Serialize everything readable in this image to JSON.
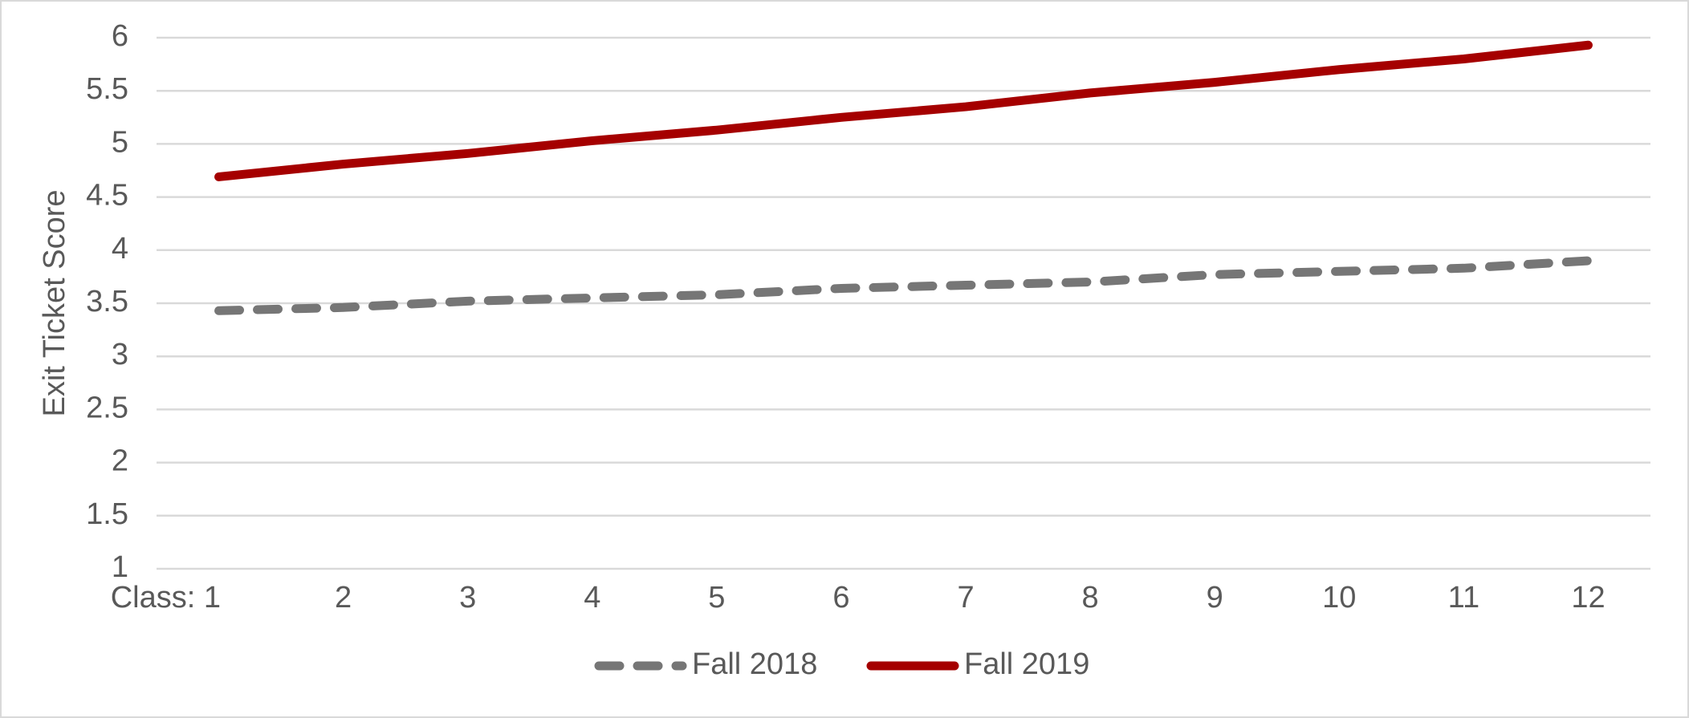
{
  "chart_data": {
    "type": "line",
    "y_label": "Exit Ticket Score",
    "categories": [
      "Class: 1",
      "2",
      "3",
      "4",
      "5",
      "6",
      "7",
      "8",
      "9",
      "10",
      "11",
      "12"
    ],
    "series": [
      {
        "name": "Fall 2018",
        "color": "#767676",
        "dash": true,
        "values": [
          3.43,
          3.46,
          3.52,
          3.55,
          3.58,
          3.64,
          3.67,
          3.7,
          3.77,
          3.8,
          3.83,
          3.9
        ]
      },
      {
        "name": "Fall 2019",
        "color": "#a50000",
        "dash": false,
        "values": [
          4.69,
          4.81,
          4.91,
          5.03,
          5.13,
          5.25,
          5.35,
          5.48,
          5.58,
          5.7,
          5.8,
          5.93
        ]
      }
    ],
    "ylim": [
      1,
      6
    ],
    "yticks": [
      1,
      1.5,
      2,
      2.5,
      3,
      3.5,
      4,
      4.5,
      5,
      5.5,
      6
    ],
    "grid": true,
    "legend": "bottom"
  }
}
